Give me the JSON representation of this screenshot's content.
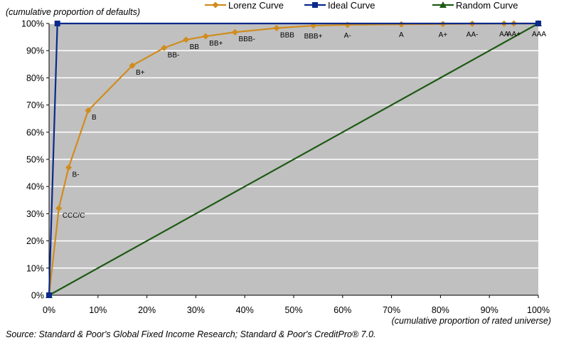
{
  "chart_data": {
    "type": "line",
    "y_axis_label": "(cumulative proportion of defaults)",
    "x_axis_label": "(cumulative proportion of rated universe)",
    "xlim": [
      0,
      100
    ],
    "ylim": [
      0,
      100
    ],
    "x_ticks": [
      "0%",
      "10%",
      "20%",
      "30%",
      "40%",
      "50%",
      "60%",
      "70%",
      "80%",
      "90%",
      "100%"
    ],
    "y_ticks": [
      "0%",
      "10%",
      "20%",
      "30%",
      "40%",
      "50%",
      "60%",
      "70%",
      "80%",
      "90%",
      "100%"
    ],
    "colors": {
      "plot_bg": "#c0c0c0",
      "grid": "#ffffff",
      "lorenz": "#d08c1e",
      "ideal": "#0a2a8a",
      "random": "#1e5a14"
    },
    "series": [
      {
        "name": "Lorenz Curve",
        "marker": "diamond",
        "points": [
          {
            "x": 0,
            "y": 0,
            "label": ""
          },
          {
            "x": 2,
            "y": 32,
            "label": "CCC/C"
          },
          {
            "x": 4,
            "y": 47,
            "label": "B-"
          },
          {
            "x": 8,
            "y": 68,
            "label": "B"
          },
          {
            "x": 17,
            "y": 84.5,
            "label": "B+"
          },
          {
            "x": 23.5,
            "y": 91,
            "label": "BB-"
          },
          {
            "x": 28,
            "y": 94,
            "label": "BB"
          },
          {
            "x": 32,
            "y": 95.3,
            "label": "BB+"
          },
          {
            "x": 38,
            "y": 96.8,
            "label": "BBB-"
          },
          {
            "x": 46.5,
            "y": 98.3,
            "label": "BBB"
          },
          {
            "x": 54,
            "y": 99.2,
            "label": "BBB+"
          },
          {
            "x": 61,
            "y": 99.5,
            "label": "A-"
          },
          {
            "x": 72,
            "y": 99.7,
            "label": "A"
          },
          {
            "x": 80.5,
            "y": 99.8,
            "label": "A+"
          },
          {
            "x": 86.5,
            "y": 99.9,
            "label": "AA-"
          },
          {
            "x": 93,
            "y": 99.95,
            "label": "AA"
          },
          {
            "x": 95,
            "y": 100,
            "label": "AA+"
          },
          {
            "x": 100,
            "y": 100,
            "label": "AAA"
          }
        ]
      },
      {
        "name": "Ideal Curve",
        "marker": "square",
        "points": [
          {
            "x": 0,
            "y": 0
          },
          {
            "x": 1.7,
            "y": 100
          },
          {
            "x": 100,
            "y": 100
          }
        ]
      },
      {
        "name": "Random Curve",
        "marker": "triangle",
        "points": [
          {
            "x": 0,
            "y": 0
          },
          {
            "x": 100,
            "y": 100
          }
        ]
      }
    ],
    "source": "Source: Standard & Poor's Global Fixed Income Research; Standard & Poor's CreditPro® 7.0."
  }
}
